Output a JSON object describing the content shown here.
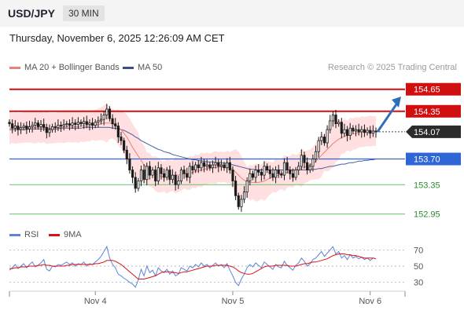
{
  "header": {
    "symbol": "USD/JPY",
    "timeframe": "30 MIN",
    "datetime": "Thursday, November 6, 2025 12:26:09 AM CET",
    "copyright": "Research © 2025 Trading Central"
  },
  "colors": {
    "candle": "#1a1a1a",
    "ma20": "#e88080",
    "band": "#ffd4d4",
    "ma50": "#4a5d9c",
    "resistance": "#d01010",
    "pivot": "#2f66d6",
    "support": "#6cc070",
    "arrow": "#2e6db7",
    "rsi": "#5b84d6",
    "rsi_ma": "#dd1111"
  },
  "chart_data": [
    {
      "type": "candlestick",
      "title": "",
      "legend": [
        "MA 20 + Bollinger Bands",
        "MA 50"
      ],
      "x_ticks": [
        {
          "label": "Nov 4",
          "index": 30
        },
        {
          "label": "Nov 5",
          "index": 78
        },
        {
          "label": "Nov 6",
          "index": 126
        }
      ],
      "ylim": [
        152.85,
        154.85
      ],
      "levels": [
        {
          "value": 154.65,
          "label": "154.65",
          "kind": "resistance"
        },
        {
          "value": 154.35,
          "label": "154.35",
          "kind": "resistance"
        },
        {
          "value": 153.7,
          "label": "153.70",
          "kind": "pivot"
        },
        {
          "value": 153.35,
          "label": "153.35",
          "kind": "support"
        },
        {
          "value": 152.95,
          "label": "152.95",
          "kind": "support"
        }
      ],
      "last_price": {
        "value": 154.07,
        "label": "154.07"
      },
      "forecast_arrow": {
        "from": 154.07,
        "to": 154.55
      },
      "closes": [
        154.18,
        154.12,
        154.15,
        154.1,
        154.13,
        154.15,
        154.11,
        154.14,
        154.16,
        154.19,
        154.14,
        154.17,
        154.13,
        154.06,
        154.1,
        154.14,
        154.13,
        154.16,
        154.15,
        154.17,
        154.18,
        154.16,
        154.19,
        154.17,
        154.2,
        154.18,
        154.21,
        154.17,
        154.19,
        154.16,
        154.2,
        154.22,
        154.24,
        154.3,
        154.38,
        154.25,
        154.18,
        154.15,
        154.0,
        153.95,
        153.82,
        153.7,
        153.55,
        153.45,
        153.3,
        153.4,
        153.55,
        153.42,
        153.6,
        153.48,
        153.55,
        153.4,
        153.58,
        153.5,
        153.45,
        153.55,
        153.42,
        153.48,
        153.35,
        153.4,
        153.55,
        153.5,
        153.45,
        153.6,
        153.55,
        153.62,
        153.58,
        153.65,
        153.6,
        153.62,
        153.58,
        153.62,
        153.65,
        153.6,
        153.62,
        153.58,
        153.65,
        153.55,
        153.4,
        153.2,
        153.05,
        153.15,
        153.25,
        153.4,
        153.5,
        153.45,
        153.55,
        153.52,
        153.48,
        153.6,
        153.55,
        153.5,
        153.45,
        153.55,
        153.5,
        153.48,
        153.65,
        153.55,
        153.5,
        153.45,
        153.55,
        153.6,
        153.75,
        153.65,
        153.55,
        153.6,
        153.7,
        153.8,
        153.95,
        154.0,
        153.92,
        154.1,
        154.22,
        154.3,
        154.18,
        154.2,
        154.05,
        154.1,
        154.02,
        154.12,
        154.08,
        154.1,
        154.07,
        154.1,
        154.06,
        154.09,
        154.05,
        154.08,
        154.07
      ],
      "ma20": [
        154.12,
        154.12,
        154.12,
        154.12,
        154.12,
        154.13,
        154.13,
        154.13,
        154.13,
        154.13,
        154.13,
        154.13,
        154.13,
        154.13,
        154.12,
        154.12,
        154.12,
        154.13,
        154.13,
        154.13,
        154.14,
        154.14,
        154.14,
        154.14,
        154.14,
        154.15,
        154.15,
        154.15,
        154.15,
        154.16,
        154.16,
        154.17,
        154.18,
        154.19,
        154.19,
        154.19,
        154.18,
        154.16,
        154.13,
        154.1,
        154.05,
        154.0,
        153.93,
        153.86,
        153.8,
        153.74,
        153.68,
        153.62,
        153.58,
        153.55,
        153.52,
        153.5,
        153.48,
        153.46,
        153.46,
        153.46,
        153.47,
        153.47,
        153.48,
        153.48,
        153.49,
        153.5,
        153.5,
        153.51,
        153.52,
        153.53,
        153.54,
        153.55,
        153.56,
        153.57,
        153.57,
        153.58,
        153.58,
        153.59,
        153.59,
        153.59,
        153.59,
        153.58,
        153.56,
        153.52,
        153.48,
        153.44,
        153.41,
        153.39,
        153.38,
        153.38,
        153.38,
        153.38,
        153.39,
        153.4,
        153.42,
        153.44,
        153.45,
        153.47,
        153.48,
        153.5,
        153.51,
        153.52,
        153.53,
        153.54,
        153.55,
        153.56,
        153.58,
        153.59,
        153.6,
        153.62,
        153.64,
        153.67,
        153.71,
        153.75,
        153.79,
        153.83,
        153.87,
        153.91,
        153.94,
        153.97,
        153.99,
        154.01,
        154.02,
        154.03,
        154.04,
        154.05,
        154.06,
        154.07,
        154.07,
        154.08,
        154.08,
        154.08,
        154.08
      ],
      "ma50": [
        154.1,
        154.1,
        154.1,
        154.1,
        154.1,
        154.1,
        154.1,
        154.11,
        154.11,
        154.11,
        154.11,
        154.11,
        154.11,
        154.11,
        154.11,
        154.11,
        154.11,
        154.11,
        154.12,
        154.12,
        154.12,
        154.12,
        154.12,
        154.12,
        154.12,
        154.12,
        154.13,
        154.13,
        154.13,
        154.13,
        154.13,
        154.13,
        154.13,
        154.13,
        154.13,
        154.13,
        154.12,
        154.12,
        154.11,
        154.1,
        154.09,
        154.07,
        154.05,
        154.03,
        154.0,
        153.98,
        153.95,
        153.93,
        153.91,
        153.89,
        153.87,
        153.85,
        153.83,
        153.82,
        153.8,
        153.79,
        153.78,
        153.76,
        153.75,
        153.74,
        153.73,
        153.72,
        153.71,
        153.7,
        153.69,
        153.69,
        153.68,
        153.67,
        153.67,
        153.66,
        153.66,
        153.66,
        153.65,
        153.65,
        153.65,
        153.64,
        153.64,
        153.63,
        153.62,
        153.61,
        153.6,
        153.59,
        153.58,
        153.57,
        153.56,
        153.56,
        153.55,
        153.55,
        153.55,
        153.55,
        153.55,
        153.55,
        153.55,
        153.55,
        153.55,
        153.55,
        153.55,
        153.55,
        153.55,
        153.55,
        153.55,
        153.55,
        153.55,
        153.55,
        153.55,
        153.55,
        153.56,
        153.56,
        153.57,
        153.57,
        153.58,
        153.59,
        153.6,
        153.6,
        153.61,
        153.62,
        153.63,
        153.63,
        153.64,
        153.65,
        153.65,
        153.66,
        153.67,
        153.67,
        153.68,
        153.68,
        153.69,
        153.69,
        153.7
      ]
    },
    {
      "type": "line",
      "title": "",
      "legend": [
        "RSI",
        "9MA"
      ],
      "ylim": [
        20,
        80
      ],
      "y_ticks": [
        70,
        50,
        30
      ],
      "rsi": [
        45,
        48,
        52,
        47,
        50,
        53,
        48,
        52,
        55,
        49,
        51,
        54,
        58,
        46,
        44,
        50,
        49,
        52,
        51,
        53,
        55,
        52,
        54,
        50,
        53,
        52,
        55,
        50,
        53,
        52,
        55,
        58,
        62,
        68,
        74,
        60,
        52,
        48,
        40,
        38,
        35,
        33,
        30,
        28,
        24,
        33,
        46,
        38,
        50,
        42,
        45,
        38,
        48,
        44,
        42,
        46,
        40,
        44,
        38,
        40,
        48,
        46,
        44,
        50,
        48,
        52,
        49,
        54,
        50,
        52,
        48,
        51,
        54,
        50,
        52,
        48,
        53,
        45,
        38,
        30,
        26,
        34,
        40,
        48,
        52,
        49,
        54,
        51,
        48,
        55,
        52,
        49,
        46,
        52,
        49,
        48,
        56,
        51,
        48,
        45,
        51,
        54,
        60,
        56,
        50,
        53,
        58,
        60,
        64,
        68,
        62,
        66,
        70,
        74,
        65,
        68,
        60,
        63,
        58,
        64,
        60,
        62,
        59,
        61,
        58,
        60,
        57,
        60,
        59
      ],
      "ma9": [
        47,
        47,
        48,
        48,
        49,
        49,
        49,
        50,
        50,
        50,
        51,
        51,
        52,
        51,
        51,
        50,
        50,
        50,
        50,
        50,
        51,
        51,
        52,
        52,
        52,
        52,
        52,
        52,
        52,
        52,
        53,
        53,
        54,
        55,
        57,
        57,
        57,
        56,
        54,
        52,
        49,
        46,
        43,
        40,
        37,
        34,
        34,
        34,
        35,
        36,
        37,
        38,
        40,
        42,
        43,
        43,
        43,
        42,
        42,
        41,
        42,
        43,
        43,
        44,
        45,
        46,
        47,
        48,
        49,
        50,
        50,
        50,
        51,
        51,
        51,
        51,
        51,
        50,
        49,
        47,
        44,
        42,
        41,
        40,
        40,
        41,
        43,
        45,
        47,
        49,
        50,
        50,
        50,
        51,
        51,
        51,
        51,
        51,
        50,
        50,
        50,
        51,
        52,
        53,
        53,
        54,
        55,
        55,
        56,
        57,
        58,
        59,
        61,
        63,
        64,
        65,
        65,
        65,
        64,
        64,
        63,
        63,
        62,
        61,
        60,
        60,
        60,
        60,
        59
      ]
    }
  ]
}
